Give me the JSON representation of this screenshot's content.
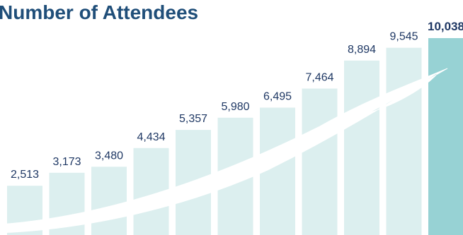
{
  "chart_data": {
    "type": "bar",
    "title": "Number of Attendees",
    "xlabel": "",
    "ylabel": "",
    "ylim": [
      0,
      10500
    ],
    "values": [
      2513,
      3173,
      3480,
      4434,
      5357,
      5980,
      6495,
      7464,
      8894,
      9545,
      10038
    ],
    "value_labels": [
      "2,513",
      "3,173",
      "3,480",
      "4,434",
      "5,357",
      "5,980",
      "6,495",
      "7,464",
      "8,894",
      "9,545",
      "10,038"
    ],
    "highlight_index": 10,
    "colors": {
      "bar": "#dcefef",
      "highlight_bar": "#97d2d4",
      "text": "#1f3864",
      "title": "#1f4e79",
      "swoosh": "#ffffff"
    },
    "grid": false,
    "legend": "none"
  }
}
